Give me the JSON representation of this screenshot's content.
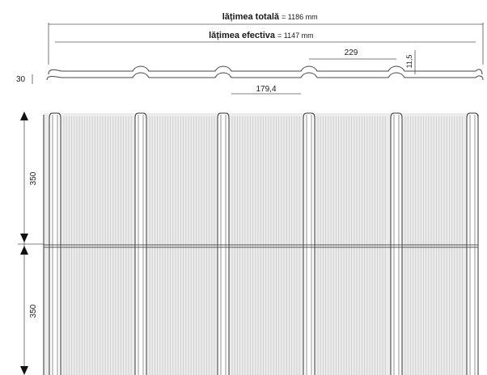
{
  "dimensions": {
    "total_width_label": "lățimea totală",
    "total_width_value": "= 1186 mm",
    "effective_width_label": "lățimea efectiva",
    "effective_width_value": "= 1147 mm",
    "wave_pitch": "229",
    "rib_height": "11,5",
    "profile_height": "30",
    "segment_width": "179,4",
    "module_length_top": "350",
    "module_length_bottom": "350"
  },
  "colors": {
    "line": "#333333",
    "panel_fill": "#e9e9e9",
    "stripe": "#c8c8c8",
    "background": "#ffffff"
  }
}
